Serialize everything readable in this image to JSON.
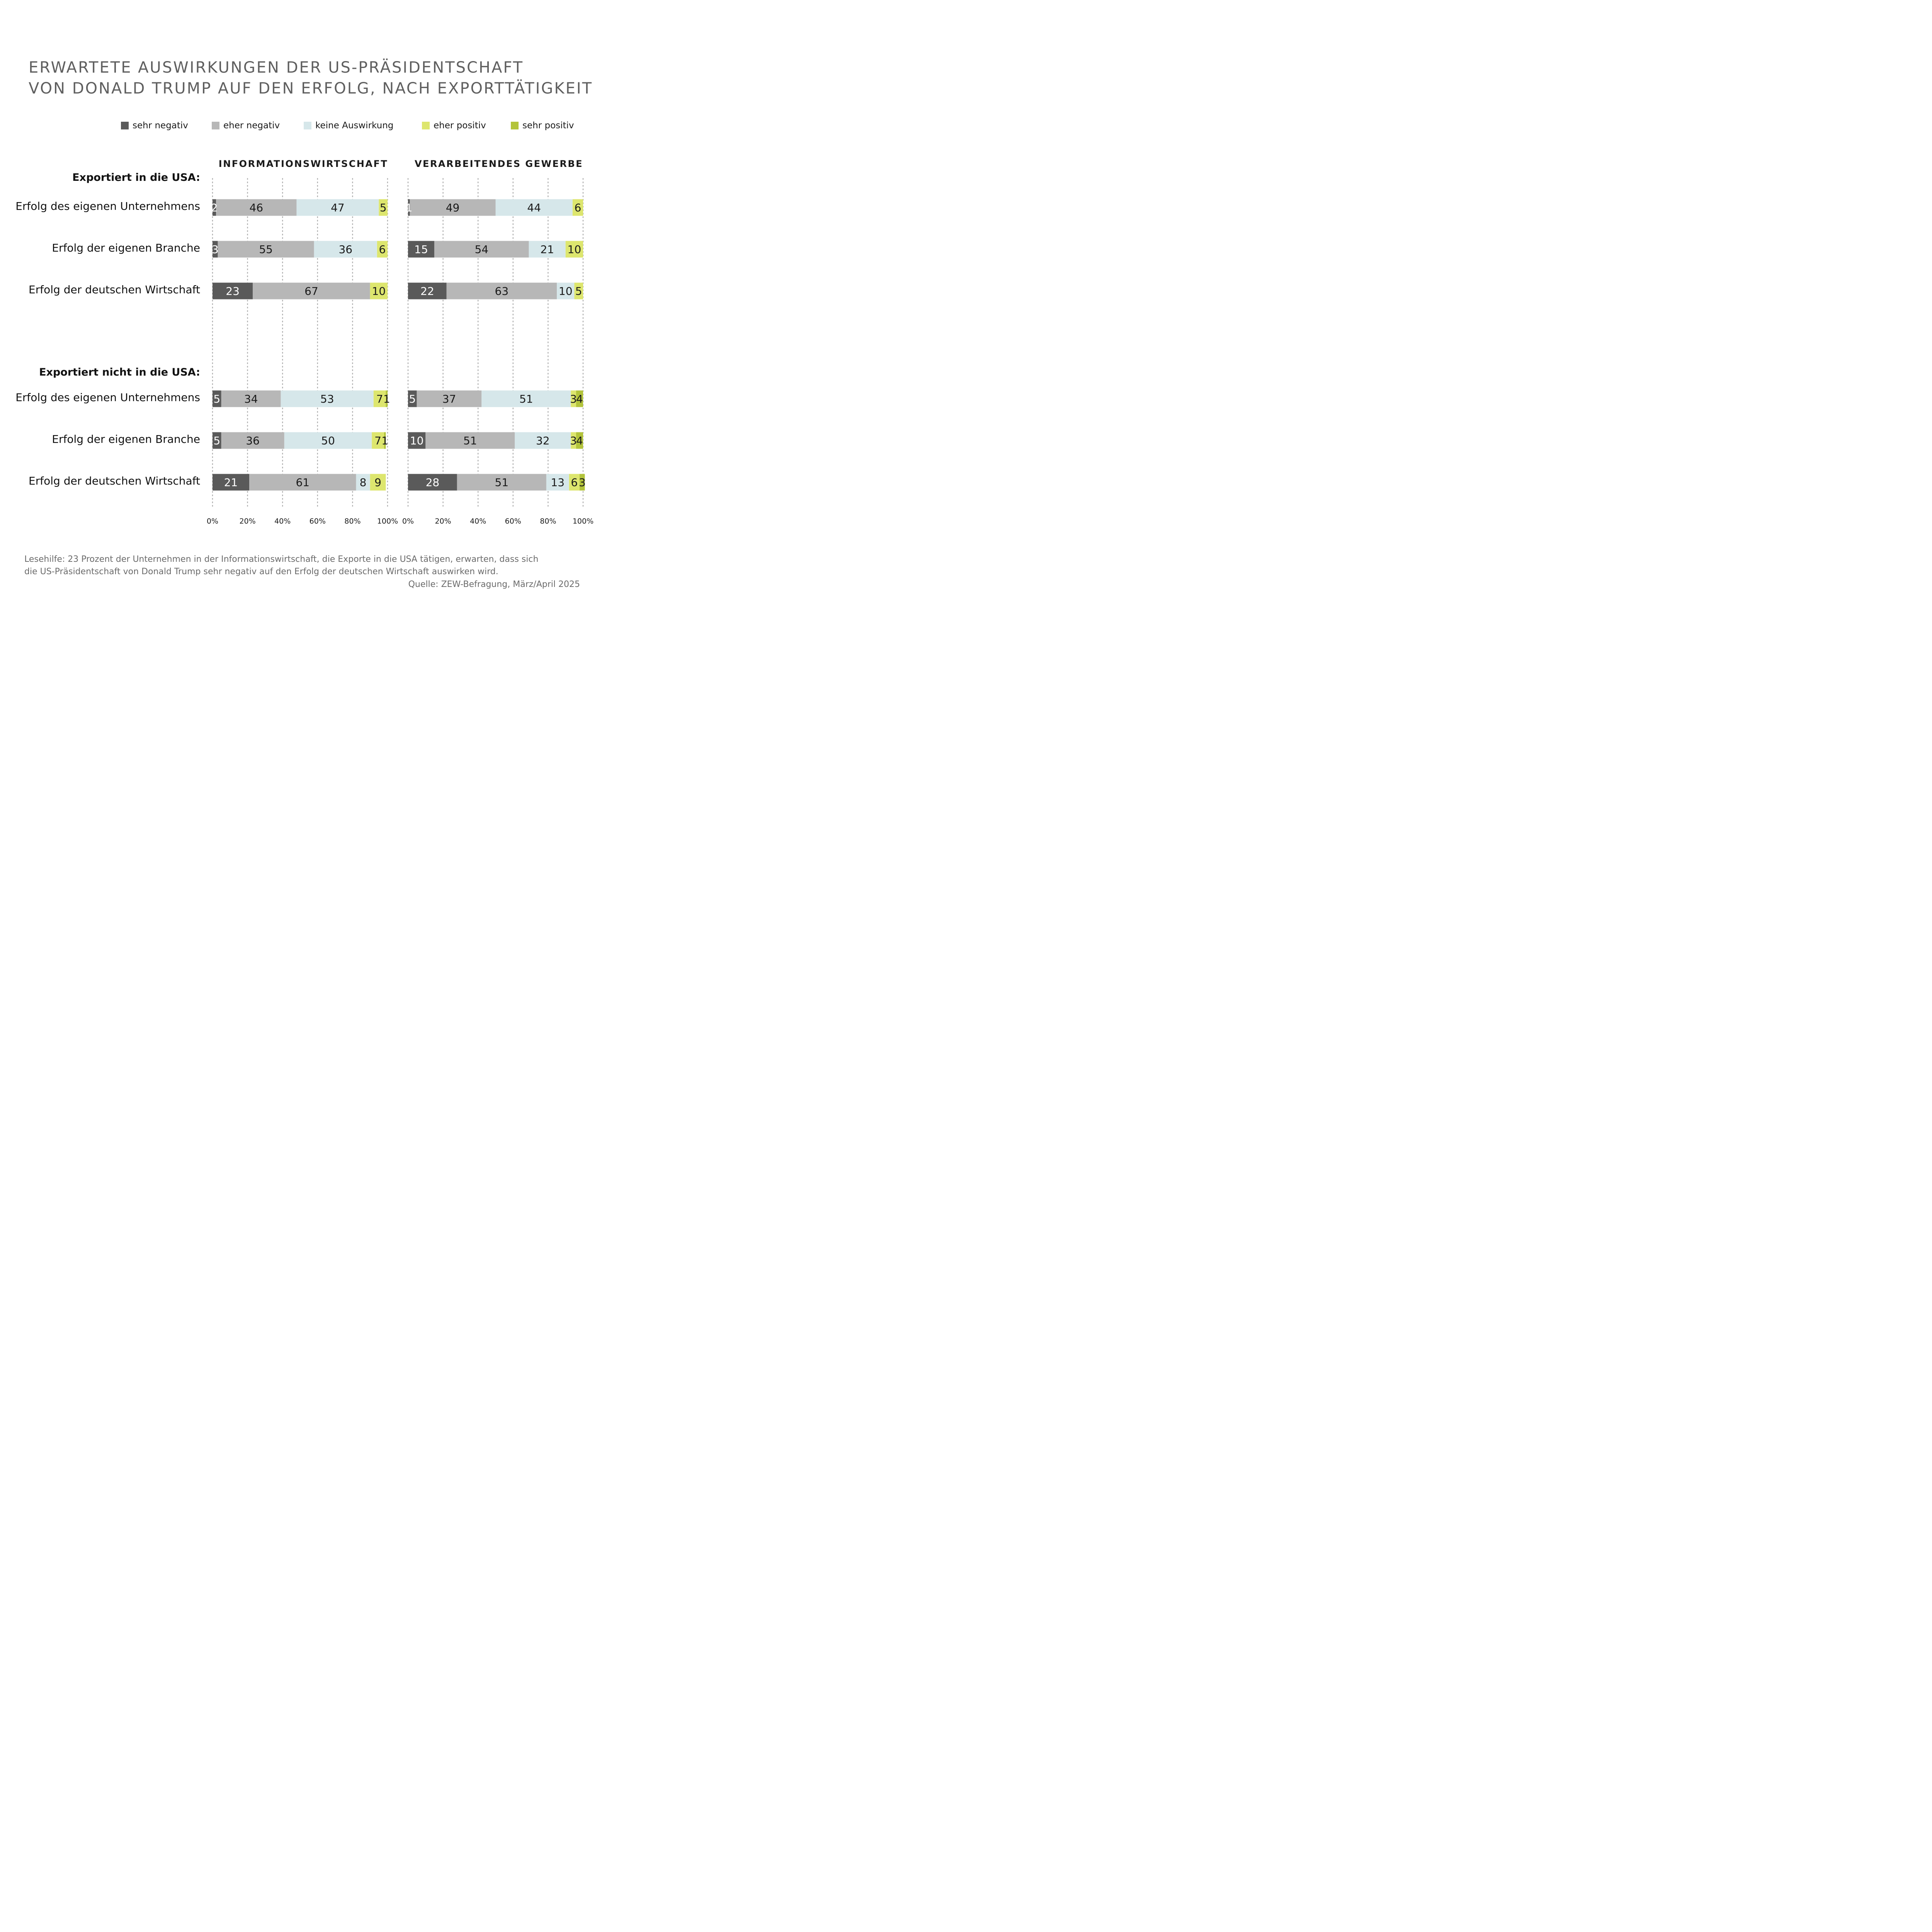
{
  "title": {
    "line1": "ERWARTETE AUSWIRKUNGEN DER US-PRÄSIDENTSCHAFT",
    "line2": "VON DONALD TRUMP AUF DEN ERFOLG, NACH EXPORTTÄTIGKEIT"
  },
  "legend": [
    {
      "label": "sehr negativ",
      "color": "#5a5a5a"
    },
    {
      "label": "eher negativ",
      "color": "#b7b7b7"
    },
    {
      "label": "keine Auswirkung",
      "color": "#d6e7ea"
    },
    {
      "label": "eher positiv",
      "color": "#dde66e"
    },
    {
      "label": "sehr positiv",
      "color": "#b3c43b"
    }
  ],
  "panels": [
    "INFORMATIONSWIRTSCHAFT",
    "VERARBEITENDES GEWERBE"
  ],
  "groups": [
    {
      "label": "Exportiert in die USA:",
      "rows": [
        "Erfolg des eigenen Unternehmens",
        "Erfolg der eigenen Branche",
        "Erfolg der deutschen Wirtschaft"
      ]
    },
    {
      "label": "Exportiert nicht in die USA:",
      "rows": [
        "Erfolg des eigenen Unternehmens",
        "Erfolg der eigenen Branche",
        "Erfolg der deutschen Wirtschaft"
      ]
    }
  ],
  "chart_data": {
    "type": "bar",
    "orientation": "horizontal-stacked-100",
    "series": [
      "sehr negativ",
      "eher negativ",
      "keine Auswirkung",
      "eher positiv",
      "sehr positiv"
    ],
    "x_ticks": [
      "0%",
      "20%",
      "40%",
      "60%",
      "80%",
      "100%"
    ],
    "xlim": [
      0,
      100
    ],
    "grid": true,
    "legend_position": "top-right",
    "panels": [
      {
        "name": "INFORMATIONSWIRTSCHAFT",
        "groups": [
          {
            "name": "Exportiert in die USA:",
            "bars": [
              [
                2,
                46,
                47,
                5,
                0
              ],
              [
                3,
                55,
                36,
                6,
                0
              ],
              [
                23,
                67,
                0,
                10,
                0
              ]
            ]
          },
          {
            "name": "Exportiert nicht in die USA:",
            "bars": [
              [
                5,
                34,
                53,
                7,
                1
              ],
              [
                5,
                36,
                50,
                7,
                1
              ],
              [
                21,
                61,
                8,
                9,
                0
              ]
            ]
          }
        ]
      },
      {
        "name": "VERARBEITENDES GEWERBE",
        "groups": [
          {
            "name": "Exportiert in die USA:",
            "bars": [
              [
                1,
                49,
                44,
                6,
                0
              ],
              [
                15,
                54,
                21,
                10,
                0
              ],
              [
                22,
                63,
                10,
                5,
                0
              ]
            ]
          },
          {
            "name": "Exportiert nicht in die USA:",
            "bars": [
              [
                5,
                37,
                51,
                3,
                4
              ],
              [
                10,
                51,
                32,
                3,
                4
              ],
              [
                28,
                51,
                13,
                6,
                3
              ]
            ]
          }
        ]
      }
    ]
  },
  "footnote": {
    "line1": "Lesehilfe: 23 Prozent der Unternehmen in der Informationswirtschaft, die Exporte in die USA tätigen, erwarten, dass sich",
    "line2": "die US-Präsidentschaft von Donald Trump sehr negativ auf den Erfolg der deutschen Wirtschaft auswirken wird."
  },
  "source": "Quelle: ZEW-Befragung, März/April 2025"
}
